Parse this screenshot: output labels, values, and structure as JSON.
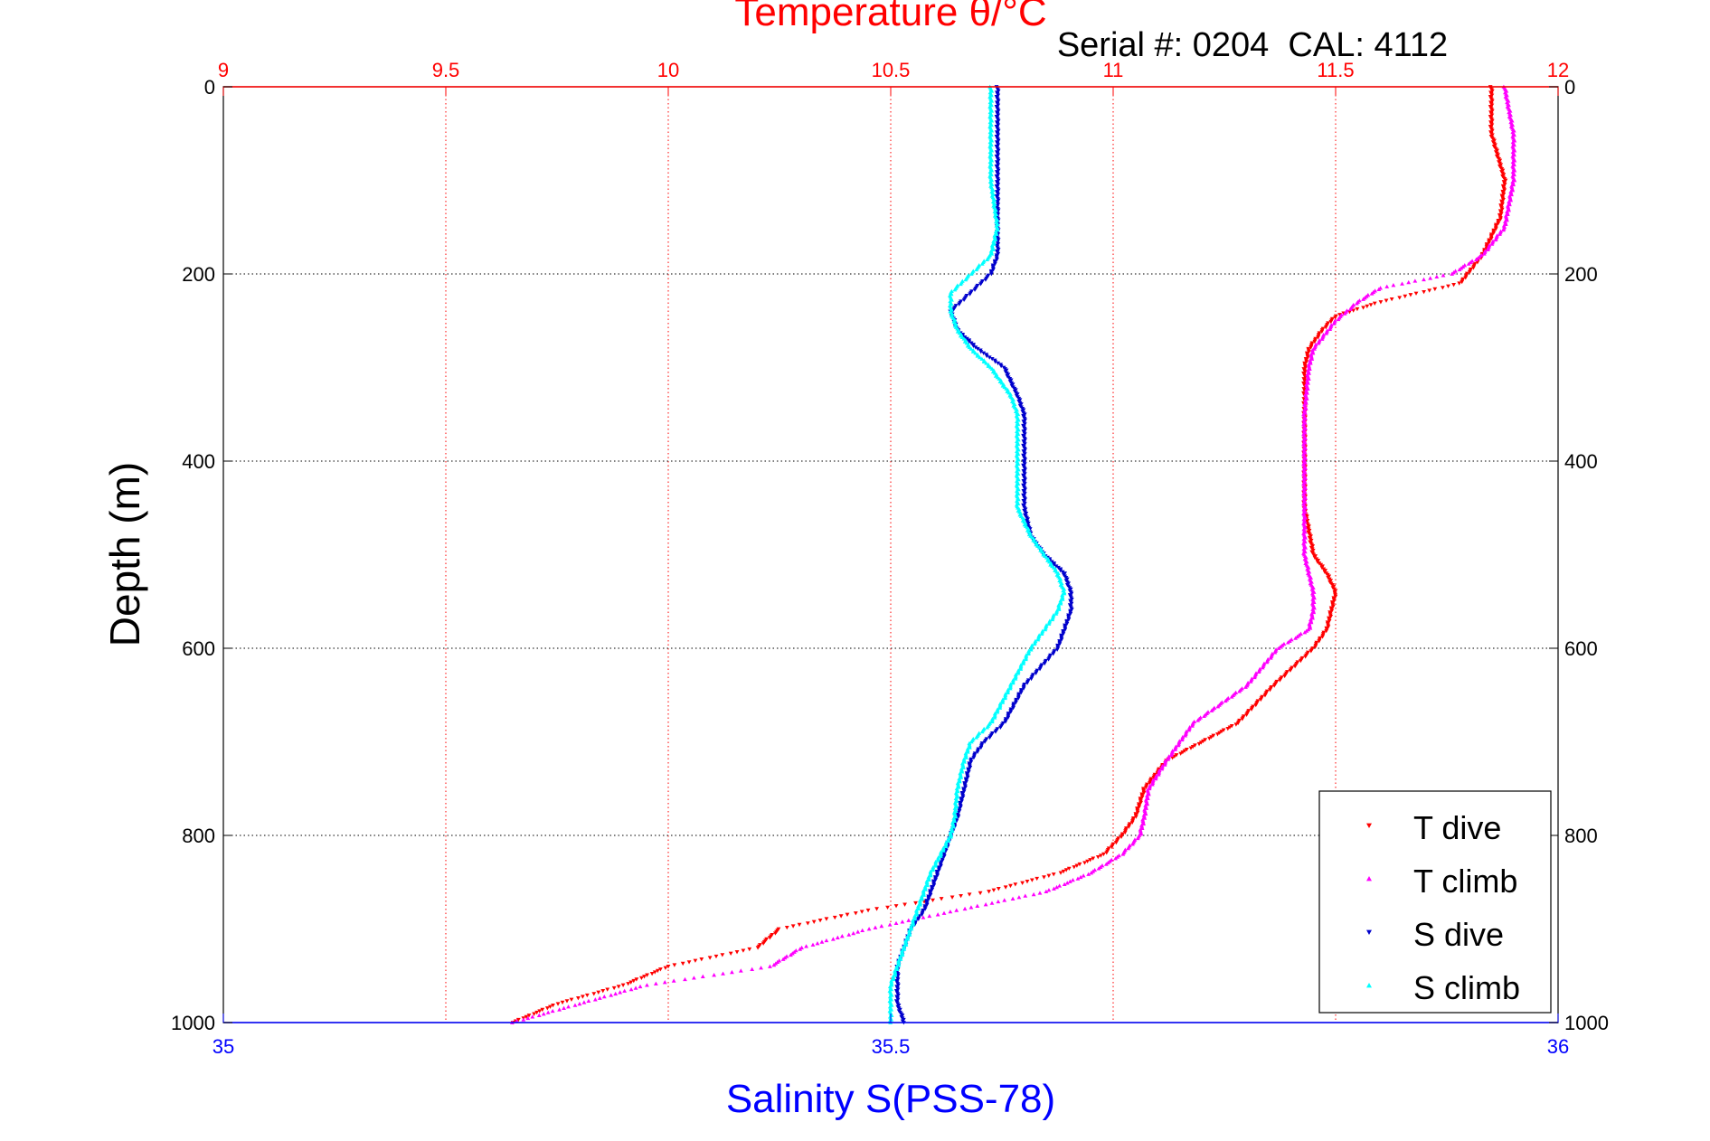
{
  "chart_data": {
    "type": "scatter",
    "top_axis": {
      "label": "Temperature θ/°C",
      "range": [
        9,
        12
      ],
      "ticks": [
        "9",
        "9.5",
        "10",
        "10.5",
        "11",
        "11.5",
        "12"
      ],
      "color": "#ff0000"
    },
    "bottom_axis": {
      "label": "Salinity S(PSS-78)",
      "range": [
        35,
        36
      ],
      "ticks": [
        "35",
        "35.5",
        "36"
      ],
      "color": "#0000ff"
    },
    "y_axis": {
      "label": "Depth (m)",
      "range": [
        0,
        1000
      ],
      "reversed": true,
      "ticks": [
        "0",
        "200",
        "400",
        "600",
        "800",
        "1000"
      ]
    },
    "annotation": "Serial #: 0204  CAL: 4112",
    "grid": true,
    "legend_position": "bottom-right",
    "series": [
      {
        "name": "T dive",
        "axis": "temperature",
        "color": "#ff0000",
        "marker": "triangle-down",
        "depth": [
          0,
          50,
          100,
          140,
          180,
          210,
          230,
          245,
          260,
          280,
          300,
          350,
          400,
          450,
          500,
          520,
          540,
          560,
          580,
          600,
          640,
          680,
          720,
          750,
          780,
          800,
          820,
          840,
          860,
          880,
          900,
          920,
          940,
          960,
          980,
          1000
        ],
        "values": [
          11.85,
          11.85,
          11.88,
          11.87,
          11.83,
          11.78,
          11.6,
          11.5,
          11.47,
          11.44,
          11.43,
          11.43,
          11.43,
          11.43,
          11.45,
          11.48,
          11.5,
          11.49,
          11.48,
          11.45,
          11.36,
          11.28,
          11.12,
          11.07,
          11.05,
          11.02,
          10.98,
          10.88,
          10.72,
          10.45,
          10.25,
          10.2,
          10.0,
          9.9,
          9.75,
          9.65
        ]
      },
      {
        "name": "T climb",
        "axis": "temperature",
        "color": "#ff00ff",
        "marker": "triangle-up",
        "depth": [
          0,
          50,
          100,
          150,
          180,
          200,
          215,
          230,
          250,
          280,
          300,
          350,
          400,
          450,
          500,
          520,
          540,
          560,
          580,
          600,
          640,
          680,
          720,
          750,
          780,
          800,
          820,
          840,
          860,
          880,
          900,
          920,
          940,
          960,
          980,
          1000
        ],
        "values": [
          11.88,
          11.9,
          11.9,
          11.88,
          11.83,
          11.76,
          11.6,
          11.55,
          11.5,
          11.45,
          11.44,
          11.43,
          11.43,
          11.43,
          11.43,
          11.44,
          11.45,
          11.45,
          11.44,
          11.37,
          11.3,
          11.18,
          11.12,
          11.08,
          11.07,
          11.06,
          11.02,
          10.95,
          10.85,
          10.65,
          10.45,
          10.3,
          10.23,
          9.95,
          9.8,
          9.65
        ]
      },
      {
        "name": "S dive",
        "axis": "salinity",
        "color": "#0000cc",
        "marker": "triangle-down",
        "depth": [
          0,
          50,
          100,
          150,
          180,
          200,
          220,
          240,
          260,
          280,
          300,
          330,
          350,
          400,
          450,
          480,
          500,
          520,
          540,
          560,
          580,
          600,
          640,
          680,
          700,
          720,
          750,
          780,
          800,
          840,
          880,
          900,
          920,
          940,
          960,
          980,
          1000
        ],
        "values": [
          35.58,
          35.58,
          35.58,
          35.58,
          35.58,
          35.575,
          35.56,
          35.545,
          35.55,
          35.565,
          35.585,
          35.595,
          35.6,
          35.6,
          35.6,
          35.605,
          35.615,
          35.63,
          35.635,
          35.635,
          35.63,
          35.625,
          35.6,
          35.585,
          35.57,
          35.56,
          35.555,
          35.55,
          35.545,
          35.535,
          35.525,
          35.515,
          35.51,
          35.505,
          35.505,
          35.505,
          35.51
        ]
      },
      {
        "name": "S climb",
        "axis": "salinity",
        "color": "#00ffff",
        "marker": "triangle-up",
        "depth": [
          0,
          50,
          100,
          150,
          180,
          200,
          220,
          240,
          260,
          280,
          300,
          330,
          350,
          400,
          450,
          480,
          500,
          520,
          540,
          560,
          580,
          600,
          640,
          680,
          700,
          720,
          750,
          780,
          800,
          840,
          880,
          900,
          920,
          940,
          960,
          980,
          1000
        ],
        "values": [
          35.575,
          35.575,
          35.575,
          35.58,
          35.575,
          35.56,
          35.545,
          35.545,
          35.55,
          35.56,
          35.575,
          35.59,
          35.595,
          35.595,
          35.595,
          35.605,
          35.615,
          35.625,
          35.63,
          35.625,
          35.615,
          35.605,
          35.59,
          35.575,
          35.56,
          35.555,
          35.55,
          35.548,
          35.545,
          35.53,
          35.52,
          35.515,
          35.51,
          35.505,
          35.5,
          35.5,
          35.5
        ]
      }
    ]
  }
}
